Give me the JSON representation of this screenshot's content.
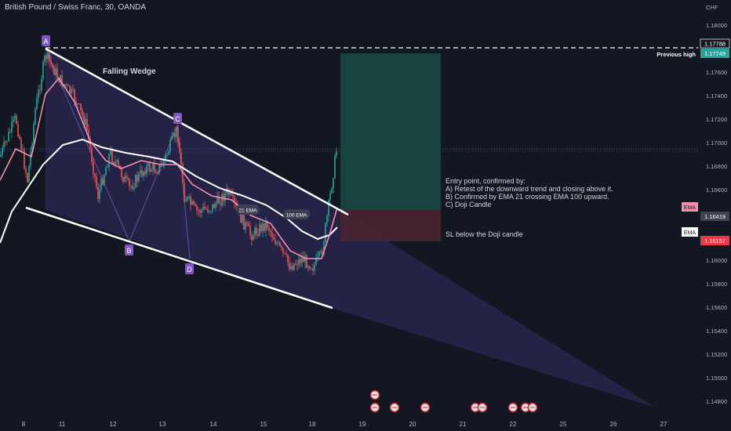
{
  "header": {
    "symbol_title": "British Pound / Swiss Franc, 30, OANDA"
  },
  "price_axis": {
    "currency": "CHF",
    "ticks": [
      "1.18000",
      "1.17600",
      "1.17400",
      "1.17200",
      "1.17000",
      "1.16800",
      "1.16600",
      "1.16000",
      "1.15800",
      "1.15600",
      "1.15400",
      "1.15200",
      "1.15000",
      "1.14800"
    ]
  },
  "price_labels": {
    "previous_high_value": "1.17788",
    "current_price_value": "1.17749",
    "previous_high_text": "Previous high",
    "ema_21_tag": "EMA",
    "ema_21_value": "1.16419",
    "ema_100_tag": "EMA",
    "ema_100_value": "1.16157"
  },
  "time_axis": {
    "ticks": [
      "8",
      "11",
      "12",
      "13",
      "14",
      "15",
      "18",
      "19",
      "20",
      "21",
      "22",
      "25",
      "26",
      "27"
    ]
  },
  "annotations": {
    "pattern_title": "Falling Wedge",
    "point_a": "A",
    "point_b": "B",
    "point_c": "C",
    "point_d": "D",
    "ema21_badge": "21 EMA",
    "ema100_badge": "100 EMA",
    "entry_lines": [
      "Entry point, confirmed by:",
      "A) Retest of the downward trend and closing above it.",
      "B) Confirmed by EMA 21 crossing EMA 100 upward.",
      "C) Doji Candle"
    ],
    "stop_loss_note": "SL below the Doji candle"
  },
  "colors": {
    "background": "#131722",
    "up_candle": "#26a69a",
    "down_candle": "#ef5350",
    "ema21": "#f48fb1",
    "ema100": "#ffffff",
    "wedge_fill": "#2e2a5c",
    "pattern_label": "#7e57c2",
    "target_zone": "#1a4a43",
    "stop_zone": "#4a2530",
    "current_price_tag": "#26a69a",
    "ema100_tag": "#f23645"
  },
  "chart_data": {
    "type": "candlestick",
    "title": "British Pound / Swiss Franc, 30, OANDA",
    "y_unit": "CHF",
    "ylim": [
      1.1476,
      1.1806
    ],
    "x_ticks": [
      "8",
      "11",
      "12",
      "13",
      "14",
      "15",
      "18",
      "19",
      "20",
      "21",
      "22",
      "25",
      "26",
      "27"
    ],
    "pattern": "Falling Wedge",
    "pivots": [
      {
        "label": "A",
        "price": 1.1775
      },
      {
        "label": "B",
        "price": 1.1615
      },
      {
        "label": "C",
        "price": 1.1711
      },
      {
        "label": "D",
        "price": 1.1612
      }
    ],
    "previous_high": 1.17788,
    "last_price": 1.17749,
    "ema_21": 1.16419,
    "ema_100": 1.16157,
    "take_profit_zone": [
      1.1641,
      1.1775
    ],
    "stop_loss_zone": [
      1.1617,
      1.1641
    ],
    "grid": false
  }
}
